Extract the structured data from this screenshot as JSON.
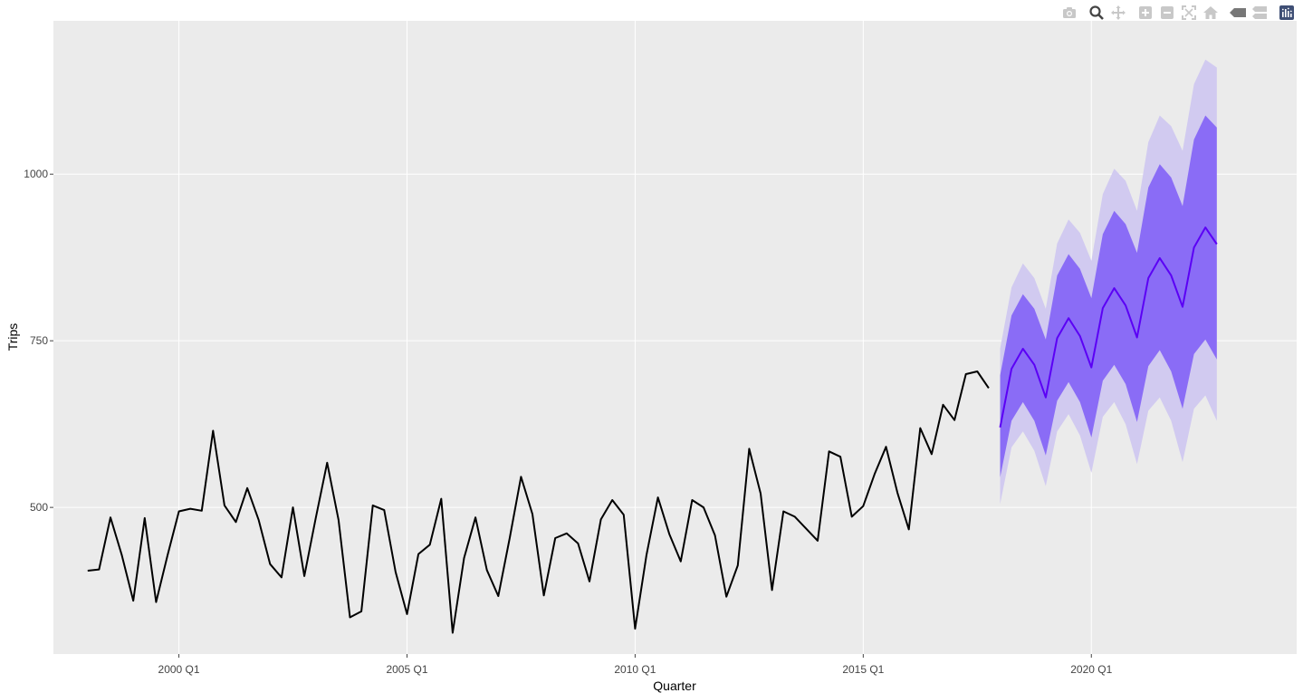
{
  "modebar": {
    "buttons": [
      {
        "name": "camera-icon",
        "title": "Download plot as a png"
      },
      {
        "name": "zoom-icon",
        "title": "Zoom"
      },
      {
        "name": "pan-icon",
        "title": "Pan"
      },
      {
        "name": "zoom-in-icon",
        "title": "Zoom in"
      },
      {
        "name": "zoom-out-icon",
        "title": "Zoom out"
      },
      {
        "name": "autoscale-icon",
        "title": "Autoscale"
      },
      {
        "name": "reset-axes-icon",
        "title": "Reset axes"
      },
      {
        "name": "hover-closest-icon",
        "title": "Show closest data on hover"
      },
      {
        "name": "hover-compare-icon",
        "title": "Compare data on hover"
      },
      {
        "name": "plotly-logo-icon",
        "title": "Produced with Plotly"
      }
    ]
  },
  "chart_data": {
    "type": "line",
    "xlabel": "Quarter",
    "ylabel": "Trips",
    "x_range": [
      1997.25,
      2024.5
    ],
    "y_range": [
      280,
      1230
    ],
    "x_ticks": [
      {
        "value": 2000.0,
        "label": "2000 Q1"
      },
      {
        "value": 2005.0,
        "label": "2005 Q1"
      },
      {
        "value": 2010.0,
        "label": "2010 Q1"
      },
      {
        "value": 2015.0,
        "label": "2015 Q1"
      },
      {
        "value": 2020.0,
        "label": "2020 Q1"
      }
    ],
    "y_ticks": [
      {
        "value": 500,
        "label": "500"
      },
      {
        "value": 750,
        "label": "750"
      },
      {
        "value": 1000,
        "label": "1000"
      }
    ],
    "grid": true,
    "colors": {
      "history": "#000000",
      "forecast": "#5b00f5",
      "band80": "#8a6cf6",
      "band95": "#d1caf0",
      "panel": "#ebebeb",
      "grid": "#ffffff"
    },
    "history": {
      "x": [
        1998.0,
        1998.25,
        1998.5,
        1998.75,
        1999.0,
        1999.25,
        1999.5,
        1999.75,
        2000.0,
        2000.25,
        2000.5,
        2000.75,
        2001.0,
        2001.25,
        2001.5,
        2001.75,
        2002.0,
        2002.25,
        2002.5,
        2002.75,
        2003.0,
        2003.25,
        2003.5,
        2003.75,
        2004.0,
        2004.25,
        2004.5,
        2004.75,
        2005.0,
        2005.25,
        2005.5,
        2005.75,
        2006.0,
        2006.25,
        2006.5,
        2006.75,
        2007.0,
        2007.25,
        2007.5,
        2007.75,
        2008.0,
        2008.25,
        2008.5,
        2008.75,
        2009.0,
        2009.25,
        2009.5,
        2009.75,
        2010.0,
        2010.25,
        2010.5,
        2010.75,
        2011.0,
        2011.25,
        2011.5,
        2011.75,
        2012.0,
        2012.25,
        2012.5,
        2012.75,
        2013.0,
        2013.25,
        2013.5,
        2013.75,
        2014.0,
        2014.25,
        2014.5,
        2014.75,
        2015.0,
        2015.25,
        2015.5,
        2015.75,
        2016.0,
        2016.25,
        2016.5,
        2016.75,
        2017.0,
        2017.25,
        2017.5,
        2017.75
      ],
      "y": [
        405,
        407,
        485,
        428,
        360,
        484,
        358,
        428,
        494,
        498,
        495,
        615,
        503,
        478,
        529,
        481,
        415,
        395,
        500,
        397,
        484,
        567,
        481,
        335,
        344,
        503,
        496,
        403,
        340,
        430,
        444,
        513,
        312,
        424,
        485,
        406,
        367,
        454,
        546,
        490,
        368,
        454,
        461,
        446,
        389,
        482,
        511,
        489,
        318,
        429,
        515,
        460,
        419,
        511,
        500,
        458,
        366,
        413,
        588,
        521,
        376,
        494,
        486,
        468,
        450,
        584,
        576,
        486,
        502,
        550,
        591,
        522,
        467,
        619,
        580,
        654,
        631,
        700,
        704,
        679
      ]
    },
    "forecast": {
      "x": [
        2018.0,
        2018.25,
        2018.5,
        2018.75,
        2019.0,
        2019.25,
        2019.5,
        2019.75,
        2020.0,
        2020.25,
        2020.5,
        2020.75,
        2021.0,
        2021.25,
        2021.5,
        2021.75,
        2022.0,
        2022.25,
        2022.5,
        2022.75
      ],
      "mean": [
        620,
        708,
        738,
        714,
        665,
        754,
        784,
        757,
        710,
        799,
        829,
        803,
        755,
        844,
        874,
        848,
        801,
        890,
        920,
        895
      ],
      "lo80": [
        545,
        630,
        658,
        630,
        578,
        660,
        688,
        658,
        605,
        690,
        714,
        685,
        628,
        712,
        736,
        704,
        648,
        730,
        752,
        722
      ],
      "hi80": [
        698,
        788,
        820,
        798,
        752,
        848,
        880,
        858,
        814,
        910,
        945,
        925,
        882,
        980,
        1015,
        995,
        952,
        1052,
        1088,
        1070
      ],
      "lo95": [
        505,
        590,
        614,
        585,
        532,
        614,
        640,
        608,
        552,
        636,
        658,
        625,
        565,
        645,
        665,
        630,
        568,
        648,
        668,
        630
      ],
      "hi95": [
        738,
        830,
        866,
        844,
        798,
        896,
        932,
        912,
        870,
        970,
        1008,
        990,
        945,
        1048,
        1088,
        1072,
        1035,
        1135,
        1172,
        1160
      ]
    }
  }
}
